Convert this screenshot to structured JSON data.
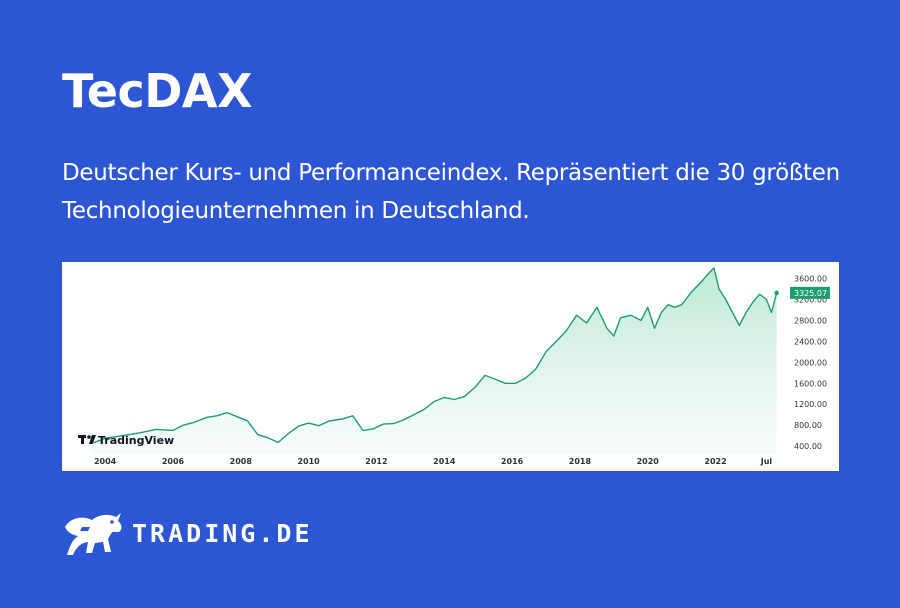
{
  "header": {
    "title": "TecDAX",
    "subtitle": "Deutscher Kurs- und Performanceindex. Repräsentiert die 30 größten Technologieunternehmen in Deutschland."
  },
  "brand": {
    "name": "TRADING.DE",
    "logo_icon": "bull-icon"
  },
  "chart_watermark": "TradingView",
  "colors": {
    "background": "#2d56d4",
    "line": "#1a9e6e",
    "area_fill": "#cfeee0",
    "price_badge": "#1a9e6e"
  },
  "chart_data": {
    "type": "area",
    "x_tick_labels": [
      "2004",
      "2006",
      "2008",
      "2010",
      "2012",
      "2014",
      "2016",
      "2018",
      "2020",
      "2022",
      "Jul"
    ],
    "y_tick_labels": [
      "3600.00",
      "3200.00",
      "2800.00",
      "2400.00",
      "2000.00",
      "1600.00",
      "1200.00",
      "800.00",
      "400.00"
    ],
    "ylim": [
      250,
      3800
    ],
    "xlim": [
      2003.2,
      2023.9
    ],
    "last_price_label": "3325.07",
    "last_price": 3325.07,
    "grid": false,
    "series": [
      {
        "x": [
          2003.6,
          2004.0,
          2004.5,
          2005.0,
          2005.5,
          2006.0,
          2006.3,
          2006.6,
          2007.0,
          2007.3,
          2007.6,
          2007.9,
          2008.2,
          2008.5,
          2008.8,
          2009.1,
          2009.4,
          2009.7,
          2010.0,
          2010.3,
          2010.6,
          2011.0,
          2011.3,
          2011.6,
          2011.9,
          2012.2,
          2012.5,
          2012.8,
          2013.1,
          2013.4,
          2013.7,
          2014.0,
          2014.3,
          2014.6,
          2014.9,
          2015.2,
          2015.5,
          2015.8,
          2016.1,
          2016.4,
          2016.7,
          2017.0,
          2017.3,
          2017.6,
          2017.9,
          2018.2,
          2018.5,
          2018.8,
          2019.0,
          2019.2,
          2019.5,
          2019.8,
          2020.0,
          2020.2,
          2020.4,
          2020.6,
          2020.8,
          2021.0,
          2021.3,
          2021.6,
          2021.8,
          2021.95,
          2022.1,
          2022.3,
          2022.5,
          2022.7,
          2022.9,
          2023.1,
          2023.3,
          2023.5,
          2023.65,
          2023.8
        ],
        "y": [
          450,
          550,
          600,
          650,
          720,
          700,
          800,
          850,
          950,
          980,
          1040,
          960,
          880,
          620,
          560,
          470,
          640,
          780,
          840,
          790,
          880,
          920,
          980,
          700,
          730,
          820,
          830,
          900,
          1000,
          1100,
          1250,
          1330,
          1290,
          1350,
          1520,
          1750,
          1680,
          1600,
          1600,
          1700,
          1870,
          2200,
          2400,
          2600,
          2900,
          2750,
          3050,
          2650,
          2500,
          2850,
          2900,
          2800,
          3050,
          2650,
          2950,
          3100,
          3050,
          3100,
          3350,
          3550,
          3700,
          3800,
          3400,
          3200,
          2950,
          2700,
          2950,
          3150,
          3300,
          3200,
          2950,
          3325
        ]
      }
    ]
  }
}
